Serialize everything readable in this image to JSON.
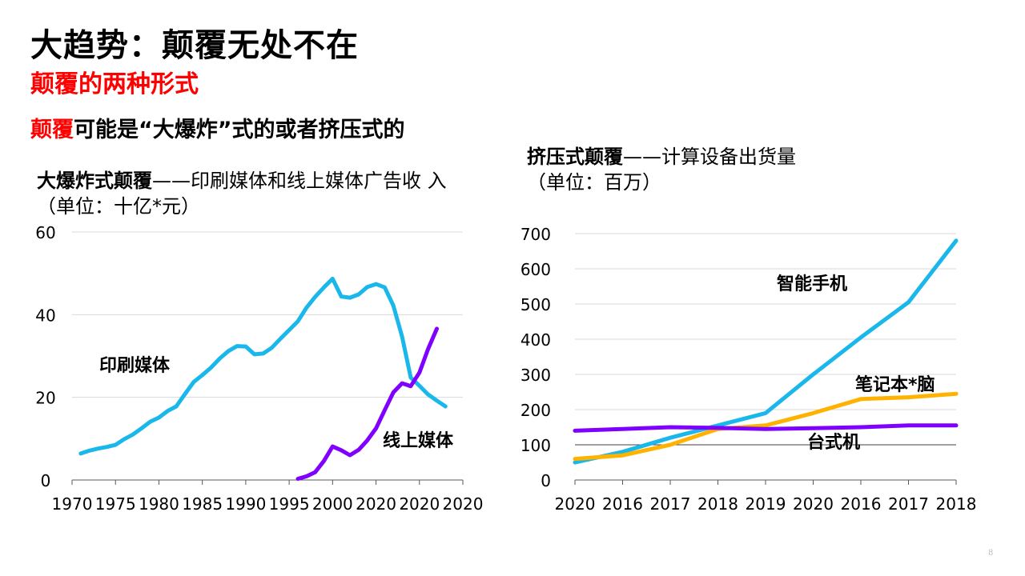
{
  "slide": {
    "title": "大趋势：颠覆无处不在",
    "subtitle": "颠覆的两种形式",
    "headline_red": "颠覆",
    "headline_rest": "可能是“大爆炸”式的或者挤压式的",
    "page_number": "8"
  },
  "left_chart_title": {
    "bold": "大爆炸式颠覆",
    "rest": "——印刷媒体和线上媒体广告收 入",
    "unit": "（单位：十亿*元）"
  },
  "right_chart_title": {
    "bold": "挤压式颠覆",
    "rest": "——计算设备出货量",
    "unit": "（单位：百万）"
  },
  "chart_data": [
    {
      "type": "line",
      "title": "大爆炸式颠覆——印刷媒体和线上媒体广告收 入（单位：十亿*元）",
      "x_tick_labels": [
        "1970",
        "1975",
        "1980",
        "1985",
        "1990",
        "1995",
        "2000",
        "2020",
        "2020",
        "2020"
      ],
      "ylim": [
        0,
        60
      ],
      "y_ticks": [
        0,
        20,
        40,
        60
      ],
      "grid": true,
      "series": [
        {
          "name": "印刷媒体",
          "color": "#1ab7ea",
          "x": [
            1971,
            1972,
            1973,
            1974,
            1975,
            1976,
            1977,
            1978,
            1979,
            1980,
            1981,
            1982,
            1983,
            1984,
            1985,
            1986,
            1987,
            1988,
            1989,
            1990,
            1991,
            1992,
            1993,
            1994,
            1995,
            1996,
            1997,
            1998,
            1999,
            2000,
            2001,
            2002,
            2003,
            2004,
            2005,
            2006,
            2007,
            2008,
            2009,
            2010,
            2011,
            2012,
            2013
          ],
          "y": [
            6.4,
            7.1,
            7.6,
            8.0,
            8.5,
            9.9,
            11.0,
            12.5,
            14.1,
            15.1,
            16.7,
            17.8,
            20.8,
            23.7,
            25.4,
            27.2,
            29.4,
            31.2,
            32.4,
            32.3,
            30.4,
            30.6,
            32.0,
            34.2,
            36.3,
            38.4,
            41.7,
            44.3,
            46.6,
            48.7,
            44.4,
            44.1,
            44.9,
            46.7,
            47.4,
            46.6,
            42.2,
            34.7,
            24.8,
            22.8,
            20.7,
            19.2,
            17.8
          ]
        },
        {
          "name": "线上媒体",
          "color": "#8000ff",
          "x": [
            1996,
            1997,
            1998,
            1999,
            2000,
            2001,
            2002,
            2003,
            2004,
            2005,
            2006,
            2007,
            2008,
            2009,
            2010,
            2011,
            2012
          ],
          "y": [
            0.3,
            0.9,
            1.9,
            4.6,
            8.1,
            7.2,
            6.0,
            7.3,
            9.6,
            12.5,
            16.9,
            21.2,
            23.4,
            22.7,
            26.0,
            31.7,
            36.6
          ]
        }
      ]
    },
    {
      "type": "line",
      "title": "挤压式颠覆——计算设备出货量（单位：百万）",
      "categories": [
        "2020",
        "2016",
        "2017",
        "2018",
        "2019",
        "2020",
        "2016",
        "2017",
        "2018"
      ],
      "ylim": [
        0,
        700
      ],
      "y_ticks": [
        0,
        100,
        200,
        300,
        400,
        500,
        600,
        700
      ],
      "grid": true,
      "series": [
        {
          "name": "智能手机",
          "color": "#1ab7ea",
          "values": [
            50,
            80,
            120,
            155,
            190,
            300,
            405,
            505,
            680
          ]
        },
        {
          "name": "笔记本*脑",
          "color": "#ffb300",
          "values": [
            60,
            70,
            100,
            145,
            155,
            190,
            230,
            235,
            245
          ]
        },
        {
          "name": "台式机",
          "color": "#8000ff",
          "values": [
            140,
            145,
            150,
            148,
            145,
            147,
            150,
            155,
            155
          ]
        }
      ]
    }
  ]
}
